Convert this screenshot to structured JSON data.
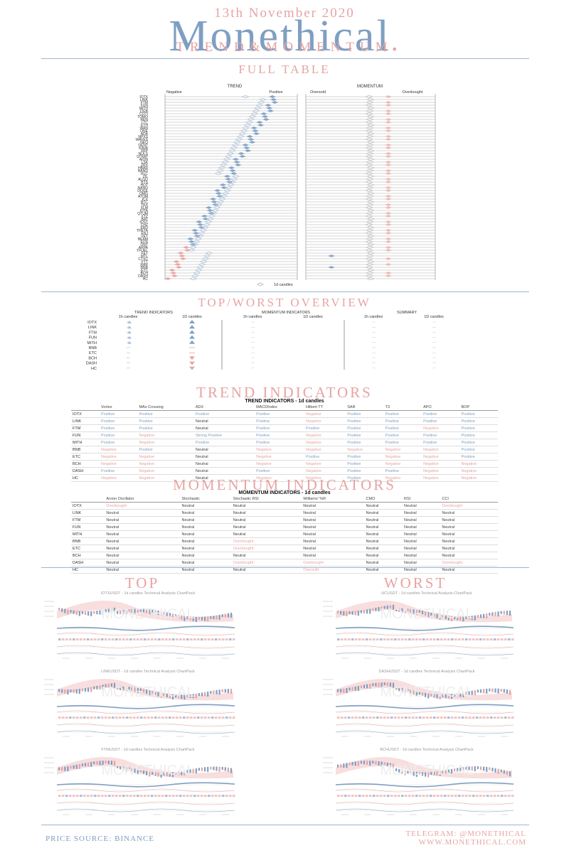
{
  "header": {
    "date": "13th November 2020",
    "brand": "Monethical",
    "tagline": "TREND&MOMENTUM"
  },
  "colors": {
    "pink": "#e8a3a3",
    "blue": "#7f9fc2",
    "line": "#9fb6d0"
  },
  "full_table": {
    "title": "FULL TABLE",
    "trend_header": "TREND",
    "momentum_header": "MOMENTUM",
    "trend_left": "Negative",
    "trend_right": "Positive",
    "mom_left": "Oversold",
    "mom_right": "Overbought",
    "legend": "1d candles",
    "legend2": "1h candles",
    "coins": [
      "IOTX",
      "LINK",
      "FTM",
      "FUN",
      "MITH",
      "DGB",
      "COTI",
      "TOMO",
      "REN",
      "LTC",
      "ETH",
      "WAN",
      "ONE",
      "ADA",
      "NPXS",
      "WAVES",
      "NEO",
      "DENT",
      "KAVA",
      "XRP",
      "NULS",
      "STRAT",
      "AION",
      "LSK",
      "ZRX",
      "HBAR",
      "BAND",
      "RLC",
      "ZIL",
      "ALGO",
      "BTS",
      "HOT",
      "NANO",
      "DOGE",
      "OMG",
      "ATOM",
      "ICX",
      "BTC",
      "TRX",
      "XLM",
      "IOTA",
      "QTUM",
      "XTZ",
      "BAT",
      "IOST",
      "CHZ",
      "ERD",
      "THETA",
      "ENJ",
      "VET",
      "BEAM",
      "EOS",
      "ONT",
      "ARPA",
      "TFUEL",
      "FET",
      "MTL",
      "CTXC",
      "FTT",
      "XMR",
      "BNB",
      "ETC",
      "BCH",
      "DASH",
      "HC"
    ]
  },
  "overview": {
    "title": "TOP/WORST OVERVIEW",
    "groups": [
      "TREND INDICATORS",
      "MOMENTUM INDICATORS",
      "SUMMARY"
    ],
    "sub": [
      "1h candles",
      "1D candles"
    ],
    "coins": [
      "IOTX",
      "LINK",
      "FTM",
      "FUN",
      "MITH",
      "BNB",
      "ETC",
      "BCH",
      "DASH",
      "HC"
    ],
    "trend_1d": [
      "up",
      "up",
      "up",
      "up",
      "up",
      "flat",
      "flat",
      "down",
      "down",
      "down"
    ]
  },
  "trend_indicators": {
    "title": "TREND INDICATORS",
    "subtitle": "TREND INDICATORS - 1d candles",
    "columns": [
      "",
      "Vortex",
      "MAs Crossing",
      "ADX",
      "MACDIndex",
      "Hilbert TT",
      "SAR",
      "T3",
      "APO",
      "BOP"
    ],
    "rows": [
      [
        "IOTX",
        "Positive",
        "Positive",
        "Positive",
        "Positive",
        "Negative",
        "Positive",
        "Positive",
        "Positive",
        "Positive"
      ],
      [
        "LINK",
        "Positive",
        "Positive",
        "Neutral",
        "Positive",
        "Negative",
        "Positive",
        "Positive",
        "Positive",
        "Positive"
      ],
      [
        "FTM",
        "Positive",
        "Positive",
        "Neutral",
        "Positive",
        "Positive",
        "Positive",
        "Positive",
        "Negative",
        "Positive"
      ],
      [
        "FUN",
        "Positive",
        "Negative",
        "Strong Positive",
        "Positive",
        "Negative",
        "Positive",
        "Positive",
        "Positive",
        "Positive"
      ],
      [
        "MITH",
        "Positive",
        "Negative",
        "Positive",
        "Positive",
        "Negative",
        "Positive",
        "Positive",
        "Positive",
        "Positive"
      ],
      [
        "BNB",
        "Negative",
        "Positive",
        "Neutral",
        "Negative",
        "Negative",
        "Negative",
        "Negative",
        "Negative",
        "Positive"
      ],
      [
        "ETC",
        "Negative",
        "Negative",
        "Neutral",
        "Negative",
        "Positive",
        "Positive",
        "Negative",
        "Negative",
        "Positive"
      ],
      [
        "BCH",
        "Negative",
        "Negative",
        "Neutral",
        "Negative",
        "Negative",
        "Positive",
        "Negative",
        "Negative",
        "Negative"
      ],
      [
        "DASH",
        "Positive",
        "Negative",
        "Neutral",
        "Positive",
        "Negative",
        "Positive",
        "Positive",
        "Negative",
        "Negative"
      ],
      [
        "HC",
        "Negative",
        "Negative",
        "Neutral",
        "Negative",
        "Negative",
        "Positive",
        "Negative",
        "Negative",
        "Negative"
      ]
    ]
  },
  "momentum_indicators": {
    "title": "MOMENTUM INDICATORS",
    "subtitle": "MOMENTUM INDICATORS - 1d candles",
    "columns": [
      "",
      "Aroon Oscillator",
      "Stochastic",
      "Stochastic RSI",
      "Williams' %R",
      "CMO",
      "RSI",
      "CCI"
    ],
    "rows": [
      [
        "IOTX",
        "Overbought",
        "Neutral",
        "Neutral",
        "Neutral",
        "Neutral",
        "Neutral",
        "Overbought"
      ],
      [
        "LINK",
        "Neutral",
        "Neutral",
        "Neutral",
        "Neutral",
        "Neutral",
        "Neutral",
        "Neutral"
      ],
      [
        "FTM",
        "Neutral",
        "Neutral",
        "Neutral",
        "Neutral",
        "Neutral",
        "Neutral",
        "Neutral"
      ],
      [
        "FUN",
        "Neutral",
        "Neutral",
        "Neutral",
        "Neutral",
        "Neutral",
        "Neutral",
        "Neutral"
      ],
      [
        "MITH",
        "Neutral",
        "Neutral",
        "Neutral",
        "Neutral",
        "Neutral",
        "Neutral",
        "Neutral"
      ],
      [
        "BNB",
        "Neutral",
        "Neutral",
        "Overbought",
        "Neutral",
        "Neutral",
        "Neutral",
        "Neutral"
      ],
      [
        "ETC",
        "Neutral",
        "Neutral",
        "Overbought",
        "Neutral",
        "Neutral",
        "Neutral",
        "Neutral"
      ],
      [
        "BCH",
        "Neutral",
        "Neutral",
        "Neutral",
        "Neutral",
        "Neutral",
        "Neutral",
        "Neutral"
      ],
      [
        "DASH",
        "Neutral",
        "Neutral",
        "Overbought",
        "Overbought",
        "Neutral",
        "Neutral",
        "Overbought"
      ],
      [
        "HC",
        "Neutral",
        "Neutral",
        "Neutral",
        "Oversold",
        "Neutral",
        "Neutral",
        "Neutral"
      ]
    ]
  },
  "charts": {
    "top_title": "TOP",
    "worst_title": "WORST",
    "top": [
      "IOTXUSDT - 1d candles Technical Analysis ChartPack",
      "LINKUSDT - 1d candles Technical Analysis ChartPack",
      "FTMUSDT - 1d candles Technical Analysis ChartPack"
    ],
    "worst": [
      "HCUSDT - 1d candles Technical Analysis ChartPack",
      "DASHUSDT - 1d candles Technical Analysis ChartPack",
      "BCHUSDT - 1d candles Technical Analysis ChartPack"
    ],
    "watermark": "MONETHICAL"
  },
  "footer": {
    "source": "PRICE SOURCE: BINANCE",
    "telegram": "TELEGRAM: @MONETHICAL",
    "web": "WWW.MONETHICAL.COM"
  }
}
